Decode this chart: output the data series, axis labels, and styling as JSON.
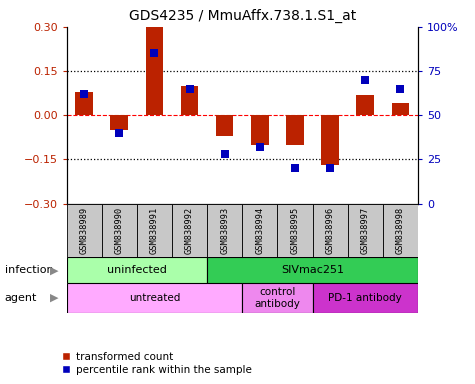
{
  "title": "GDS4235 / MmuAffx.738.1.S1_at",
  "samples": [
    "GSM838989",
    "GSM838990",
    "GSM838991",
    "GSM838992",
    "GSM838993",
    "GSM838994",
    "GSM838995",
    "GSM838996",
    "GSM838997",
    "GSM838998"
  ],
  "red_values": [
    0.08,
    -0.05,
    0.3,
    0.1,
    -0.07,
    -0.1,
    -0.1,
    -0.17,
    0.07,
    0.04
  ],
  "blue_values_pct": [
    62,
    40,
    85,
    65,
    28,
    32,
    20,
    20,
    70,
    65
  ],
  "ylim": [
    -0.3,
    0.3
  ],
  "y2lim": [
    0,
    100
  ],
  "yticks": [
    -0.3,
    -0.15,
    0,
    0.15,
    0.3
  ],
  "y2ticks": [
    0,
    25,
    50,
    75,
    100
  ],
  "hlines_dotted": [
    0.15,
    -0.15
  ],
  "hline_dashed": 0,
  "infection_groups": [
    {
      "label": "uninfected",
      "start": 0,
      "end": 4,
      "color": "#AAFFAA"
    },
    {
      "label": "SIVmac251",
      "start": 4,
      "end": 10,
      "color": "#33CC55"
    }
  ],
  "agent_groups": [
    {
      "label": "untreated",
      "start": 0,
      "end": 5,
      "color": "#FFAAFF"
    },
    {
      "label": "control\nantibody",
      "start": 5,
      "end": 7,
      "color": "#EE88EE"
    },
    {
      "label": "PD-1 antibody",
      "start": 7,
      "end": 10,
      "color": "#CC33CC"
    }
  ],
  "red_color": "#BB2200",
  "blue_color": "#0000BB",
  "sample_box_color": "#C8C8C8",
  "legend_red": "transformed count",
  "legend_blue": "percentile rank within the sample",
  "infection_label": "infection",
  "agent_label": "agent",
  "bar_width": 0.5
}
